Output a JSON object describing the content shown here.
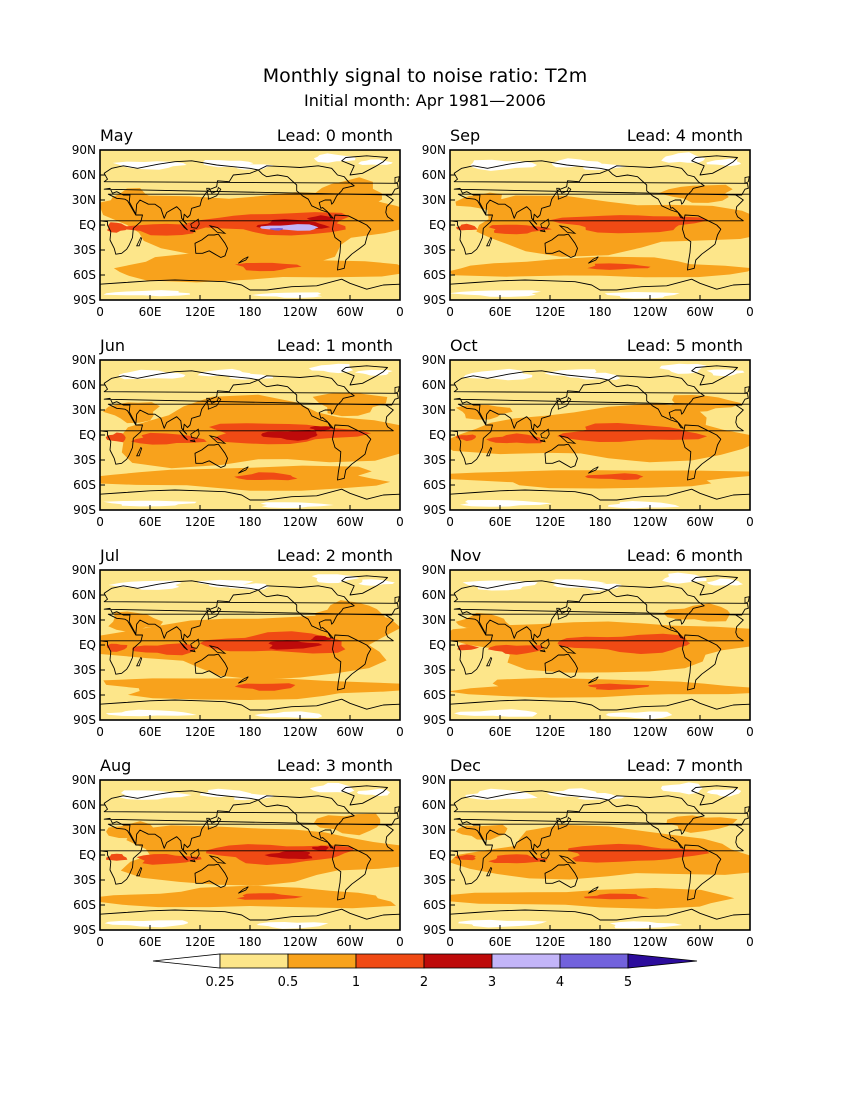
{
  "title": "Monthly signal to noise ratio: T2m",
  "subtitle": "Initial month: Apr 1981—2006",
  "lat_ticks": [
    "90N",
    "60N",
    "30N",
    "EQ",
    "30S",
    "60S",
    "90S"
  ],
  "lon_ticks": [
    "0",
    "60E",
    "120E",
    "180",
    "120W",
    "60W",
    "0"
  ],
  "panels": [
    {
      "month": "May",
      "lead": "Lead: 0 month",
      "strength": 1.0
    },
    {
      "month": "Sep",
      "lead": "Lead: 4 month",
      "strength": 0.55
    },
    {
      "month": "Jun",
      "lead": "Lead: 1 month",
      "strength": 0.85
    },
    {
      "month": "Oct",
      "lead": "Lead: 5 month",
      "strength": 0.5
    },
    {
      "month": "Jul",
      "lead": "Lead: 2 month",
      "strength": 0.75
    },
    {
      "month": "Nov",
      "lead": "Lead: 6 month",
      "strength": 0.48
    },
    {
      "month": "Aug",
      "lead": "Lead: 3 month",
      "strength": 0.65
    },
    {
      "month": "Dec",
      "lead": "Lead: 7 month",
      "strength": 0.45
    }
  ],
  "colorbar": {
    "labels": [
      "0.25",
      "0.5",
      "1",
      "2",
      "3",
      "4",
      "5"
    ],
    "colors": {
      "below_0_25": "#ffffff",
      "c0_25_0_5": "#fde68a",
      "c0_5_1": "#f8a21c",
      "c1_2": "#f04a14",
      "c2_3": "#be0a0a",
      "c3_4": "#c3b5f8",
      "c4_5": "#7262dc",
      "above_5": "#2c0c9c"
    }
  },
  "chart_data": {
    "type": "heatmap",
    "variable": "T2m",
    "level_bounds": [
      0.25,
      0.5,
      1,
      2,
      3,
      4,
      5
    ]
  }
}
